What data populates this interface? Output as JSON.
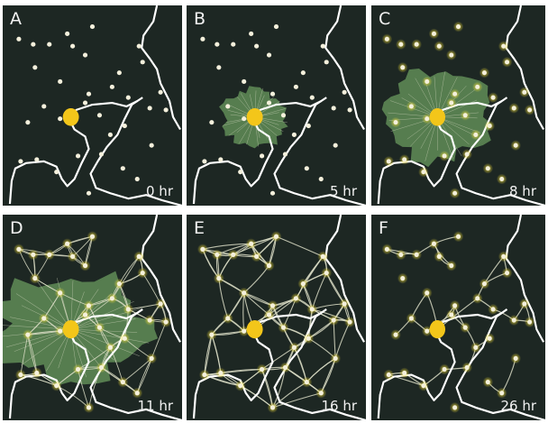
{
  "figure": {
    "panels": [
      {
        "letter": "A",
        "time": "0 hr",
        "stage": "initial"
      },
      {
        "letter": "B",
        "time": "5 hr",
        "stage": "small-spread"
      },
      {
        "letter": "C",
        "time": "8 hr",
        "stage": "large-spread"
      },
      {
        "letter": "D",
        "time": "11 hr",
        "stage": "network-forming"
      },
      {
        "letter": "E",
        "time": "16 hr",
        "stage": "network-dense"
      },
      {
        "letter": "F",
        "time": "26 hr",
        "stage": "network-refined"
      }
    ]
  },
  "colors": {
    "background": "#1d2723",
    "coastline": "#ffffff",
    "oat_flake": "#f4f0dc",
    "food_glow": "#f0dd3a",
    "center_blob": "#f3c61a",
    "plasmodium_sheet": "#5e8a55",
    "plasmodium_tube": "#d9dcc4"
  }
}
